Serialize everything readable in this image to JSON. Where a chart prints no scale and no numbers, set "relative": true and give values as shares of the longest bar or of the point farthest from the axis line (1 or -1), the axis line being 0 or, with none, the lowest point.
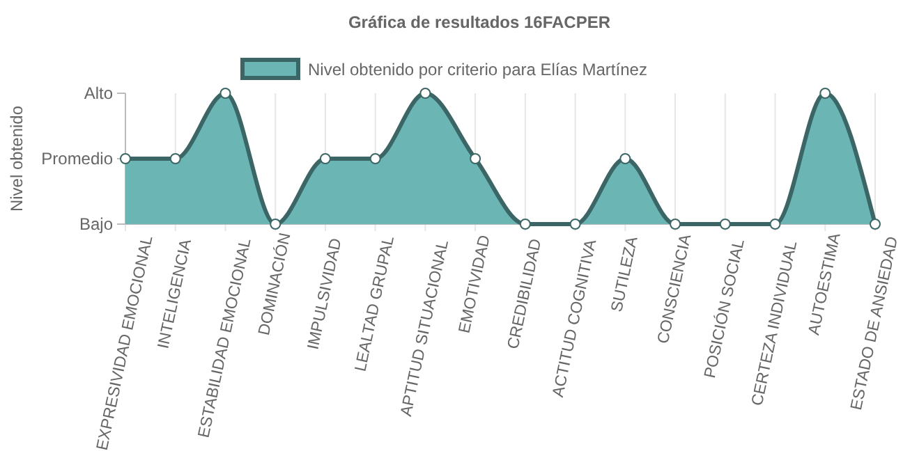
{
  "chart_data": {
    "type": "area",
    "title": "Gráfica de resultados 16FACPER",
    "ylabel": "Nivel obtenido",
    "categories": [
      "EXPRESIVIDAD EMOCIONAL",
      "INTELIGENCIA",
      "ESTABILIDAD EMOCIONAL",
      "DOMINACIÓN",
      "IMPULSIVIDAD",
      "LEALTAD GRUPAL",
      "APTITUD SITUACIONAL",
      "EMOTIVIDAD",
      "CREDIBILIDAD",
      "ACTITUD COGNITIVA",
      "SUTILEZA",
      "CONSCIENCIA",
      "POSICIÓN SOCIAL",
      "CERTEZA INDIVIDUAL",
      "AUTOESTIMA",
      "ESTADO DE ANSIEDAD"
    ],
    "series": [
      {
        "name": "Nivel obtenido por criterio para Elías Martínez",
        "color": "#6bb5b5",
        "values": [
          0.5,
          0.5,
          1,
          0,
          0.5,
          0.5,
          1,
          0.5,
          0,
          0,
          0.5,
          0,
          0,
          0,
          1,
          0
        ]
      }
    ],
    "relative": true,
    "y_categories": [
      "Alto",
      "Promedio",
      "Bajo"
    ],
    "grid": "x",
    "legend": "top",
    "marker": "circle"
  }
}
